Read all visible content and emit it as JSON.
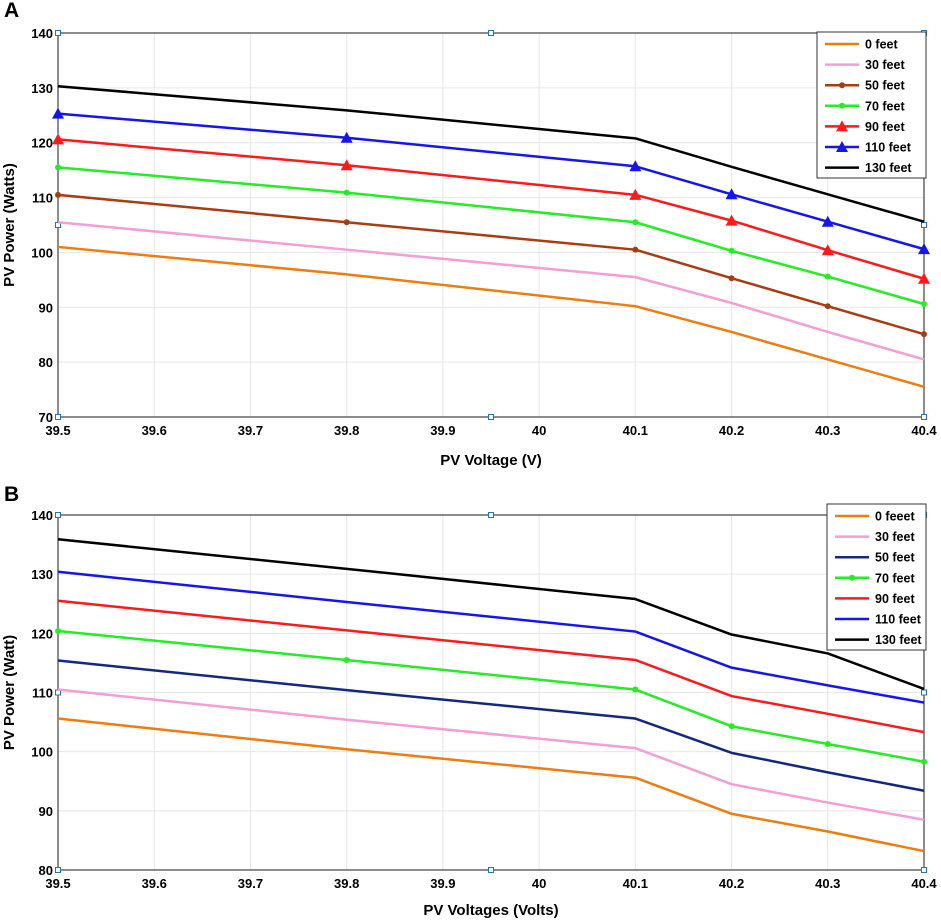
{
  "chart_data": [
    {
      "panel": "A",
      "type": "line",
      "title": "",
      "xlabel": "PV Voltage (V)",
      "ylabel": "PV Power (Watts)",
      "xlim": [
        39.5,
        40.4
      ],
      "ylim": [
        70,
        140
      ],
      "xticks": [
        "39.5",
        "39.6",
        "39.7",
        "39.8",
        "39.9",
        "40",
        "40.1",
        "40.2",
        "40.3",
        "40.4"
      ],
      "yticks": [
        "70",
        "80",
        "90",
        "100",
        "110",
        "120",
        "130",
        "140"
      ],
      "x": [
        39.5,
        39.8,
        40.1,
        40.2,
        40.3,
        40.4
      ],
      "grid": true,
      "legend_position": "top-right",
      "series": [
        {
          "name": "0 feet",
          "color": "#ee7d10",
          "marker": "none",
          "values": [
            101,
            96,
            90.2,
            85.5,
            80.5,
            75.5
          ]
        },
        {
          "name": "30 feet",
          "color": "#f59dd4",
          "marker": "none",
          "values": [
            105.5,
            100.5,
            95.5,
            90.8,
            85.5,
            80.5
          ]
        },
        {
          "name": "50 feet",
          "color": "#a83c12",
          "marker": "dot",
          "values": [
            110.5,
            105.5,
            100.5,
            95.3,
            90.2,
            85.1
          ]
        },
        {
          "name": "70 feet",
          "color": "#22ee22",
          "marker": "dot",
          "values": [
            115.5,
            110.9,
            105.5,
            100.3,
            95.6,
            90.6
          ]
        },
        {
          "name": "90 feet",
          "color": "#ff1a1a",
          "marker": "triangle",
          "values": [
            120.6,
            115.9,
            110.5,
            105.8,
            100.4,
            95.2
          ]
        },
        {
          "name": "110 feet",
          "color": "#1515ee",
          "marker": "triangle",
          "values": [
            125.3,
            120.9,
            115.7,
            110.6,
            105.6,
            100.6
          ]
        },
        {
          "name": "130 feet",
          "color": "#000000",
          "marker": "none",
          "values": [
            130.3,
            125.9,
            120.8,
            115.6,
            110.6,
            105.6
          ]
        }
      ]
    },
    {
      "panel": "B",
      "type": "line",
      "title": "",
      "xlabel": "PV Voltages (Volts)",
      "ylabel": "PV Power (Watt)",
      "xlim": [
        39.5,
        40.4
      ],
      "ylim": [
        80,
        140
      ],
      "xticks": [
        "39.5",
        "39.6",
        "39.7",
        "39.8",
        "39.9",
        "40",
        "40.1",
        "40.2",
        "40.3",
        "40.4"
      ],
      "yticks": [
        "80",
        "90",
        "100",
        "110",
        "120",
        "130",
        "140"
      ],
      "x": [
        39.5,
        39.8,
        40.1,
        40.2,
        40.3,
        40.4
      ],
      "grid": true,
      "legend_position": "top-right",
      "series": [
        {
          "name": "0 feeet",
          "color": "#ee7d10",
          "marker": "none",
          "values": [
            105.6,
            100.4,
            95.6,
            89.5,
            86.5,
            83.2
          ]
        },
        {
          "name": "30 feet",
          "color": "#f59dd4",
          "marker": "none",
          "values": [
            110.5,
            105.4,
            100.6,
            94.5,
            91.4,
            88.5
          ]
        },
        {
          "name": "50 feet",
          "color": "#13287e",
          "marker": "none",
          "values": [
            115.4,
            110.4,
            105.6,
            99.8,
            96.5,
            93.4
          ]
        },
        {
          "name": "70 feet",
          "color": "#22ee22",
          "marker": "dot",
          "values": [
            120.4,
            115.5,
            110.5,
            104.3,
            101.3,
            98.3
          ]
        },
        {
          "name": "90 feet",
          "color": "#ff1a1a",
          "marker": "none",
          "values": [
            125.5,
            120.5,
            115.5,
            109.4,
            106.4,
            103.3
          ]
        },
        {
          "name": "110 feet",
          "color": "#1515ee",
          "marker": "none",
          "values": [
            130.4,
            125.3,
            120.3,
            114.2,
            111.2,
            108.3
          ]
        },
        {
          "name": "130 feet",
          "color": "#000000",
          "marker": "none",
          "values": [
            135.9,
            130.9,
            125.8,
            119.8,
            116.6,
            110.6
          ]
        }
      ]
    }
  ]
}
